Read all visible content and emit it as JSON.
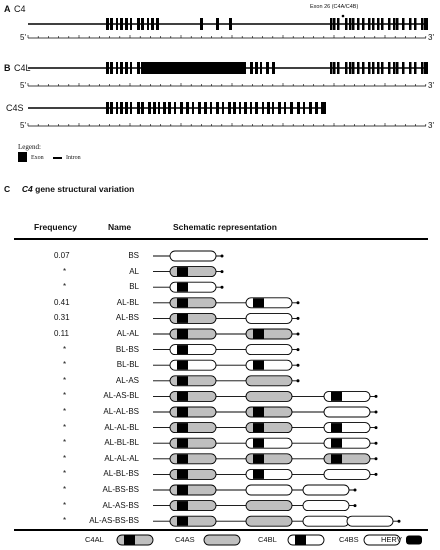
{
  "panel_a": {
    "letter": "A",
    "gene": "C4",
    "exon_label": "Exon 26 (C4A/C4B)",
    "five_prime": "5'",
    "three_prime": "3'"
  },
  "panel_b": {
    "letter": "B",
    "long_gene": "C4L",
    "short_gene": "C4S",
    "five_prime": "5'",
    "three_prime": "3'"
  },
  "legend": {
    "title": "Legend:",
    "exon": "Exon",
    "intron": "Intron"
  },
  "panel_c": {
    "letter": "C",
    "title_gene": "C4",
    "title_rest": "gene structural variation",
    "headers": {
      "frequency": "Frequency",
      "name": "Name",
      "schematic": "Schematic representation"
    },
    "rows": [
      {
        "frequency": "0.07",
        "name": "BS",
        "modules": [
          "BS"
        ]
      },
      {
        "frequency": "*",
        "name": "AL",
        "modules": [
          "AL"
        ]
      },
      {
        "frequency": "*",
        "name": "BL",
        "modules": [
          "BL"
        ]
      },
      {
        "frequency": "0.41",
        "name": "AL-BL",
        "modules": [
          "AL",
          "BL"
        ]
      },
      {
        "frequency": "0.31",
        "name": "AL-BS",
        "modules": [
          "AL",
          "BS"
        ]
      },
      {
        "frequency": "0.11",
        "name": "AL-AL",
        "modules": [
          "AL",
          "AL"
        ]
      },
      {
        "frequency": "*",
        "name": "BL-BS",
        "modules": [
          "BL",
          "BS"
        ]
      },
      {
        "frequency": "*",
        "name": "BL-BL",
        "modules": [
          "BL",
          "BL"
        ]
      },
      {
        "frequency": "*",
        "name": "AL-AS",
        "modules": [
          "AL",
          "AS"
        ]
      },
      {
        "frequency": "*",
        "name": "AL-AS-BL",
        "modules": [
          "AL",
          "AS",
          "BL"
        ]
      },
      {
        "frequency": "*",
        "name": "AL-AL-BS",
        "modules": [
          "AL",
          "AL",
          "BS"
        ]
      },
      {
        "frequency": "*",
        "name": "AL-AL-BL",
        "modules": [
          "AL",
          "AL",
          "BL"
        ]
      },
      {
        "frequency": "*",
        "name": "AL-BL-BL",
        "modules": [
          "AL",
          "BL",
          "BL"
        ]
      },
      {
        "frequency": "*",
        "name": "AL-AL-AL",
        "modules": [
          "AL",
          "AL",
          "AL"
        ]
      },
      {
        "frequency": "*",
        "name": "AL-BL-BS",
        "modules": [
          "AL",
          "BL",
          "BS"
        ]
      },
      {
        "frequency": "*",
        "name": "AL-BS-BS",
        "modules": [
          "AL",
          "BS",
          "BS"
        ]
      },
      {
        "frequency": "*",
        "name": "AL-AS-BS",
        "modules": [
          "AL",
          "AS",
          "BS"
        ]
      },
      {
        "frequency": "*",
        "name": "AL-AS-BS-BS",
        "modules": [
          "AL",
          "AS",
          "BS",
          "BS"
        ]
      }
    ],
    "key": [
      {
        "label": "C4AL",
        "type": "AL"
      },
      {
        "label": "C4AS",
        "type": "AS"
      },
      {
        "label": "C4BL",
        "type": "BL"
      },
      {
        "label": "C4BS",
        "type": "BS"
      },
      {
        "label": "HERV",
        "type": "HERV"
      }
    ]
  },
  "colors": {
    "c4a_fill": "#bfbfbf",
    "c4b_fill": "#ffffff",
    "herv_fill": "#000000",
    "line": "#000000"
  }
}
